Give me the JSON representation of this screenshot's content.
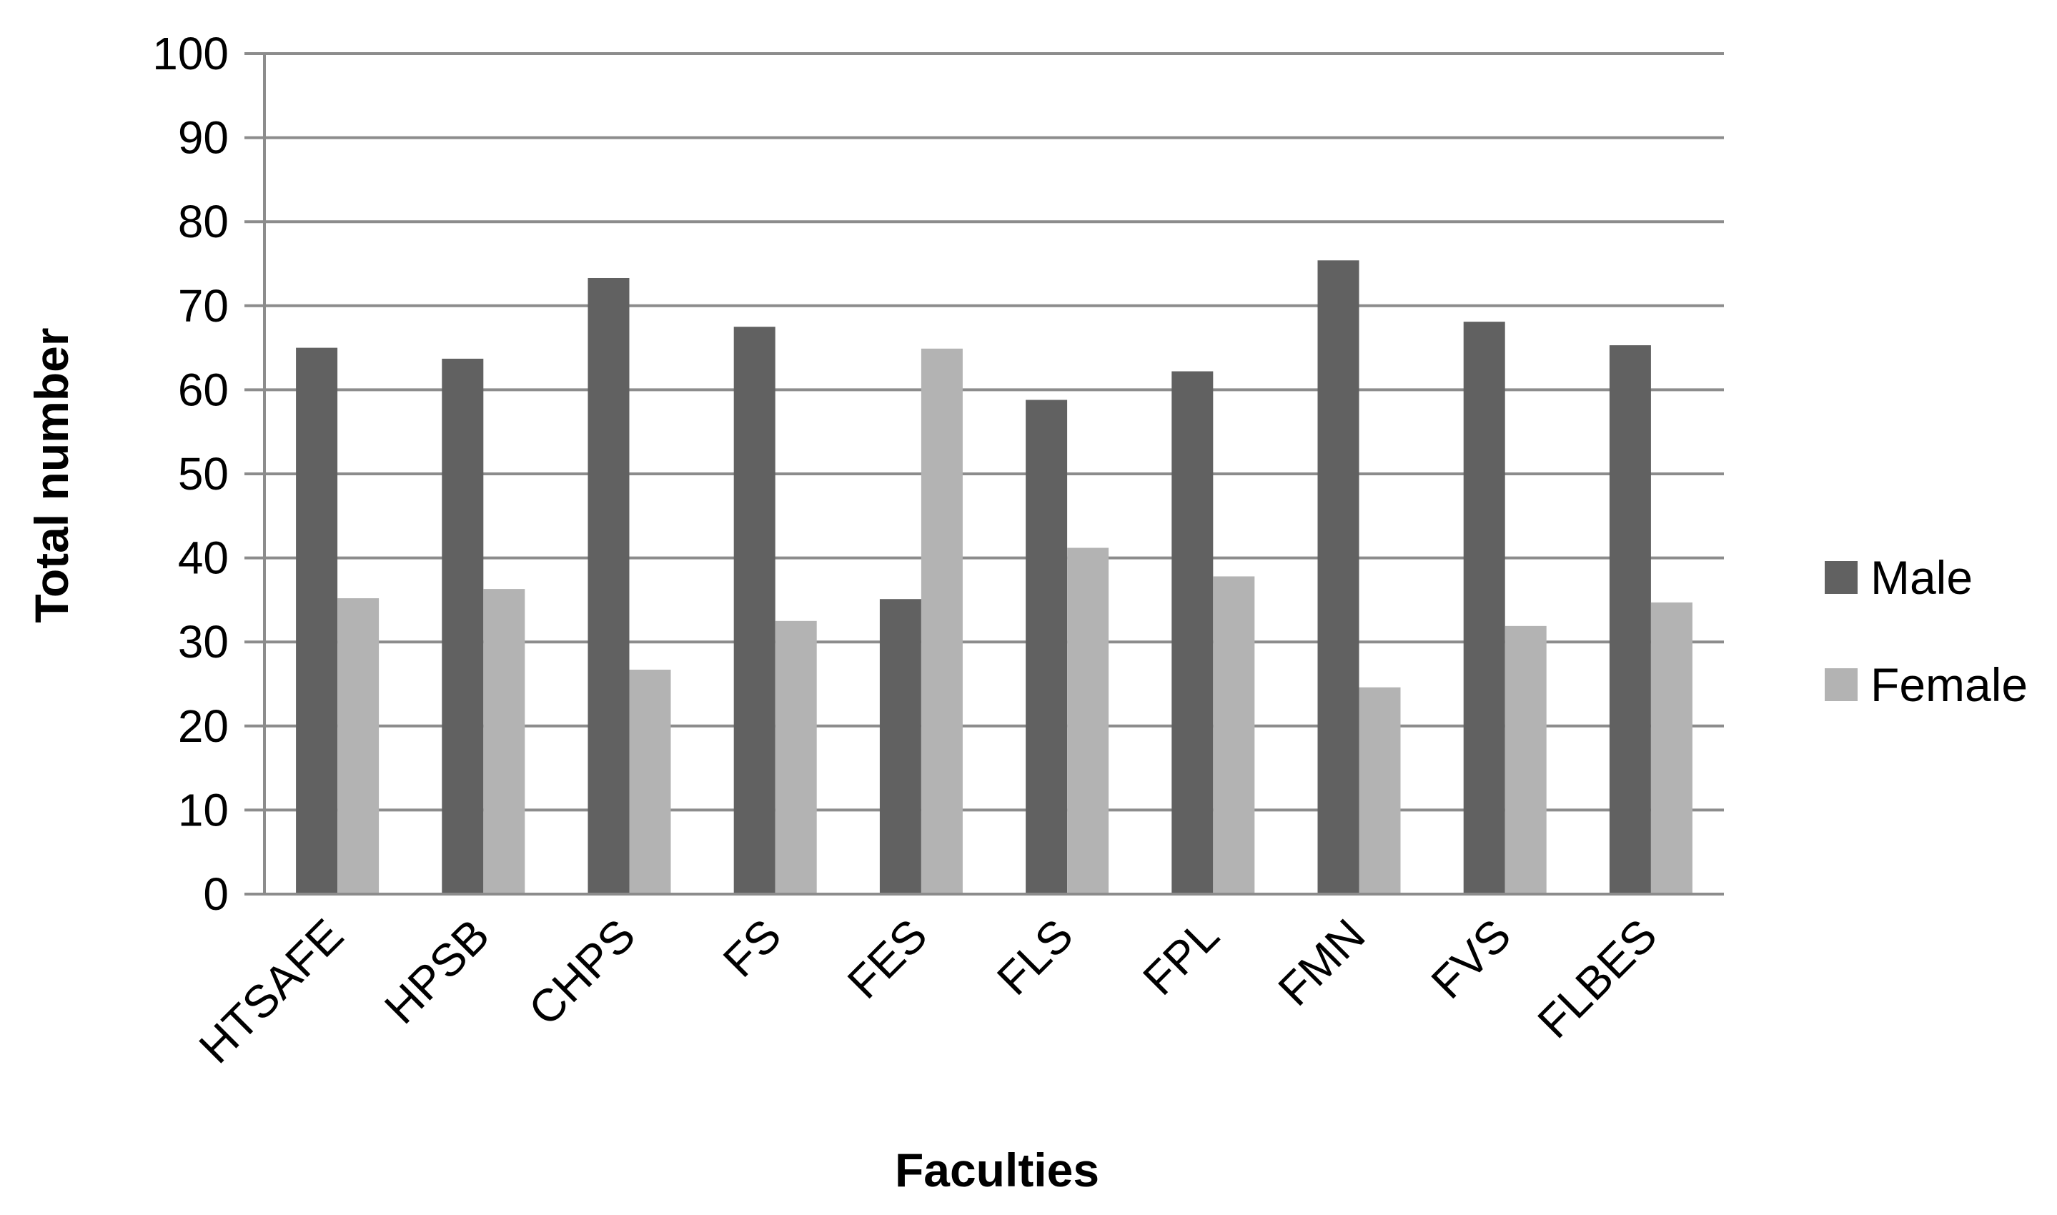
{
  "chart_data": {
    "type": "bar",
    "title": "",
    "xlabel": "Faculties",
    "ylabel": "Total number",
    "ylim": [
      0,
      100
    ],
    "yticks": [
      0,
      10,
      20,
      30,
      40,
      50,
      60,
      70,
      80,
      90,
      100
    ],
    "grid": true,
    "legend_position": "right",
    "categories": [
      "HTSAFE",
      "HPSB",
      "CHPS",
      "FS",
      "FES",
      "FLS",
      "FPL",
      "FMN",
      "FVS",
      "FLBES"
    ],
    "series": [
      {
        "name": "Male",
        "color": "#616161",
        "values": [
          65,
          63.7,
          73.3,
          67.5,
          35.1,
          58.8,
          62.2,
          75.4,
          68.1,
          65.3
        ]
      },
      {
        "name": "Female",
        "color": "#b3b3b3",
        "values": [
          35.2,
          36.3,
          26.7,
          32.5,
          64.9,
          41.2,
          37.8,
          24.6,
          31.9,
          34.7
        ]
      }
    ]
  }
}
